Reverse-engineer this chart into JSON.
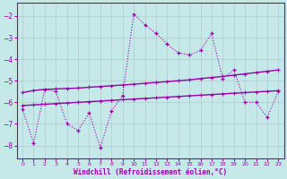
{
  "xlabel": "Windchill (Refroidissement éolien,°C)",
  "background_color": "#c5e8e8",
  "grid_color": "#b0cccc",
  "line_color": "#9900aa",
  "xlim": [
    -0.5,
    23.5
  ],
  "ylim": [
    -8.6,
    -1.4
  ],
  "yticks": [
    -8,
    -7,
    -6,
    -5,
    -4,
    -3,
    -2
  ],
  "xticks": [
    0,
    1,
    2,
    3,
    4,
    5,
    6,
    7,
    8,
    9,
    10,
    11,
    12,
    13,
    14,
    15,
    16,
    17,
    18,
    19,
    20,
    21,
    22,
    23
  ],
  "zigzag_x": [
    0,
    1,
    2,
    3,
    4,
    5,
    6,
    7,
    8,
    9,
    10,
    11,
    12,
    13,
    14,
    15,
    16,
    17,
    18,
    19,
    20,
    21,
    22,
    23
  ],
  "zigzag_y": [
    -6.3,
    -7.9,
    -5.4,
    -5.5,
    -7.0,
    -7.3,
    -6.5,
    -8.1,
    -6.4,
    -5.7,
    -1.9,
    -2.4,
    -2.8,
    -3.3,
    -3.7,
    -3.8,
    -3.6,
    -2.8,
    -4.9,
    -4.5,
    -6.0,
    -6.0,
    -6.7,
    -5.5
  ],
  "upper_trend_x": [
    0,
    1,
    2,
    3,
    4,
    5,
    6,
    7,
    8,
    9,
    10,
    11,
    12,
    13,
    14,
    15,
    16,
    17,
    18,
    19,
    20,
    21,
    22,
    23
  ],
  "upper_trend_y": [
    -5.55,
    -5.45,
    -5.4,
    -5.38,
    -5.36,
    -5.34,
    -5.3,
    -5.27,
    -5.23,
    -5.2,
    -5.16,
    -5.12,
    -5.08,
    -5.04,
    -5.0,
    -4.96,
    -4.9,
    -4.85,
    -4.8,
    -4.74,
    -4.68,
    -4.62,
    -4.56,
    -4.5
  ],
  "lower_trend_x": [
    0,
    1,
    2,
    3,
    4,
    5,
    6,
    7,
    8,
    9,
    10,
    11,
    12,
    13,
    14,
    15,
    16,
    17,
    18,
    19,
    20,
    21,
    22,
    23
  ],
  "lower_trend_y": [
    -6.15,
    -6.12,
    -6.09,
    -6.06,
    -6.03,
    -6.0,
    -5.97,
    -5.94,
    -5.91,
    -5.88,
    -5.85,
    -5.82,
    -5.79,
    -5.76,
    -5.73,
    -5.7,
    -5.67,
    -5.64,
    -5.61,
    -5.58,
    -5.55,
    -5.52,
    -5.49,
    -5.46
  ]
}
